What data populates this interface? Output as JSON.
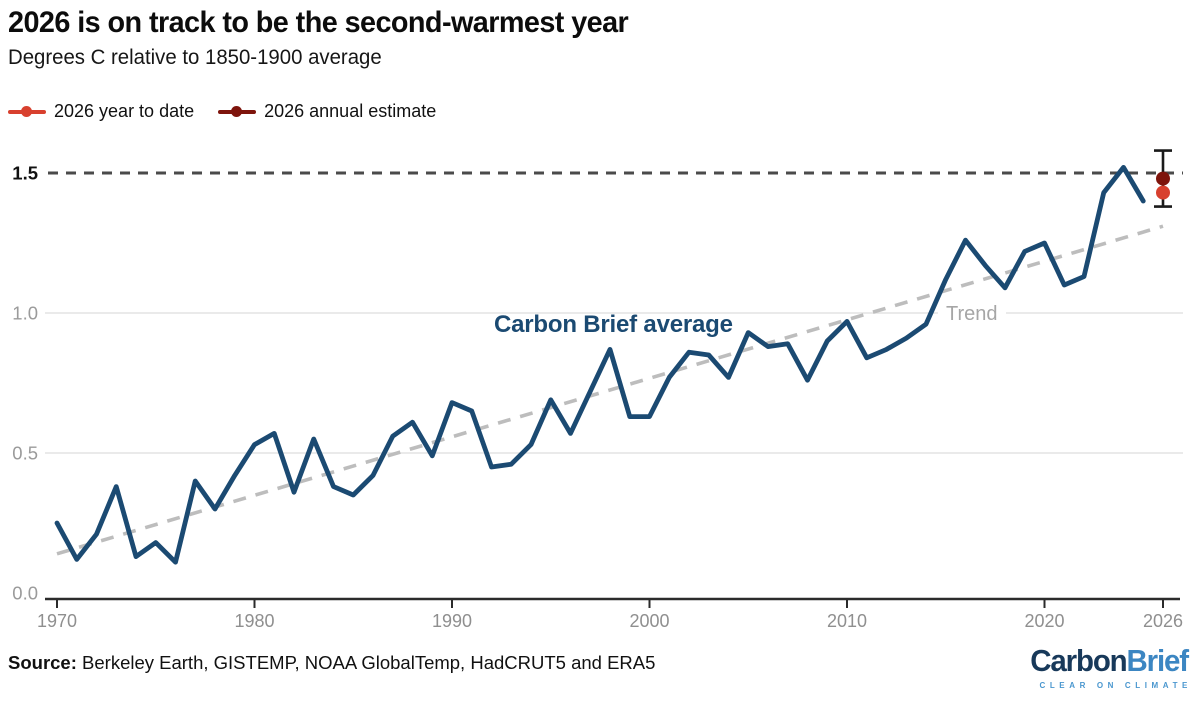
{
  "header": {
    "title": "2026 is on track to be the second-warmest year",
    "subtitle": "Degrees C relative to 1850-1900 average"
  },
  "legend": {
    "ytd": {
      "label": "2026 year to date",
      "color": "#d8402e"
    },
    "estimate": {
      "label": "2026 annual estimate",
      "color": "#7e140c"
    }
  },
  "chart_data": {
    "type": "line",
    "title": "2026 is on track to be the second-warmest year",
    "subtitle": "Degrees C relative to 1850-1900 average",
    "xlabel": "",
    "ylabel": "Degrees C relative to 1850-1900 average",
    "xlim": [
      1969.4,
      2027
    ],
    "ylim": [
      0,
      1.6
    ],
    "grid": "horizontal",
    "legend_position": "top-left",
    "xticks": [
      1970,
      1980,
      1990,
      2000,
      2010,
      2020,
      2026
    ],
    "yticks": [
      0.0,
      0.5,
      1.0,
      1.5
    ],
    "ytick_labels": [
      "0.0",
      "0.5",
      "1.0",
      "1.5"
    ],
    "threshold_line": {
      "value": 1.5,
      "style": "dashed",
      "color": "#4a4a4a"
    },
    "series": [
      {
        "name": "Carbon Brief average",
        "color": "#1b4a72",
        "x": [
          1970,
          1971,
          1972,
          1973,
          1974,
          1975,
          1976,
          1977,
          1978,
          1979,
          1980,
          1981,
          1982,
          1983,
          1984,
          1985,
          1986,
          1987,
          1988,
          1989,
          1990,
          1991,
          1992,
          1993,
          1994,
          1995,
          1996,
          1997,
          1998,
          1999,
          2000,
          2001,
          2002,
          2003,
          2004,
          2005,
          2006,
          2007,
          2008,
          2009,
          2010,
          2011,
          2012,
          2013,
          2014,
          2015,
          2016,
          2017,
          2018,
          2019,
          2020,
          2021,
          2022,
          2023,
          2024,
          2025
        ],
        "values": [
          0.25,
          0.12,
          0.21,
          0.38,
          0.13,
          0.18,
          0.11,
          0.4,
          0.3,
          0.42,
          0.53,
          0.57,
          0.36,
          0.55,
          0.38,
          0.35,
          0.42,
          0.56,
          0.61,
          0.49,
          0.68,
          0.65,
          0.45,
          0.46,
          0.53,
          0.69,
          0.57,
          0.72,
          0.87,
          0.63,
          0.63,
          0.77,
          0.86,
          0.85,
          0.77,
          0.93,
          0.88,
          0.89,
          0.76,
          0.9,
          0.97,
          0.84,
          0.87,
          0.91,
          0.96,
          1.12,
          1.26,
          1.17,
          1.09,
          1.22,
          1.25,
          1.1,
          1.13,
          1.43,
          1.52,
          1.4
        ]
      }
    ],
    "trend": {
      "name": "Trend",
      "style": "dashed",
      "color": "#bdbdbd",
      "x": [
        1970,
        2026
      ],
      "values": [
        0.14,
        1.31
      ]
    },
    "markers_2026": {
      "x": 2026,
      "year_to_date": {
        "label": "2026 year to date",
        "value": 1.43,
        "color": "#d8402e"
      },
      "annual_estimate": {
        "label": "2026 annual estimate",
        "value": 1.48,
        "color": "#7e140c"
      },
      "error_bar": {
        "low": 1.38,
        "high": 1.58,
        "color": "#1a1a1a"
      }
    }
  },
  "annotations": {
    "series_label": "Carbon Brief average",
    "trend_label": "Trend"
  },
  "footer": {
    "source_prefix": "Source:",
    "source_text": " Berkeley Earth, GISTEMP, NOAA GlobalTemp, HadCRUT5 and ERA5"
  },
  "logo": {
    "part1": "Carbon",
    "part2": "Brief",
    "tagline": "CLEAR ON CLIMATE",
    "color_part1": "#18395a",
    "color_part2": "#3c86c2",
    "color_tagline": "#4a97cf"
  }
}
